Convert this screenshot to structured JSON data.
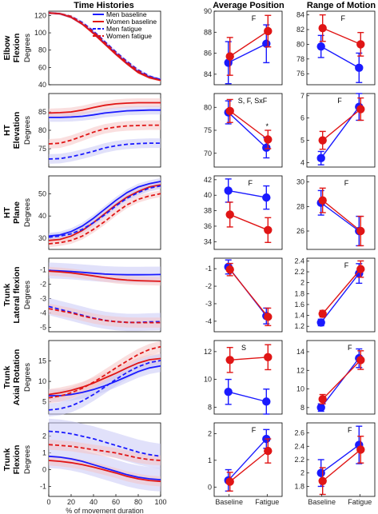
{
  "column_titles": [
    "Time Histories",
    "Average Position",
    "Range of Motion"
  ],
  "row_titles": [
    [
      "Elbow",
      "Flexion"
    ],
    [
      "HT",
      "Elevation"
    ],
    [
      "HT",
      "Plane"
    ],
    [
      "Trunk",
      "Lateral flexion"
    ],
    [
      "Trunk",
      "Axial Rotation"
    ],
    [
      "Trunk",
      "Flexion"
    ]
  ],
  "ylabel": "Degrees",
  "xlabel": "% of movement duration",
  "legend": [
    "Men baseline",
    "Women baseline",
    "Men fatigue",
    "Women fatigue"
  ],
  "colors": {
    "men": "#1a1aff",
    "women": "#e01515",
    "men_band": "#c8c8f5",
    "women_band": "#f5c4c4"
  },
  "chart_data": [
    {
      "type": "line",
      "row": "Elbow Flexion",
      "panel": "Time Histories",
      "x": [
        0,
        10,
        20,
        30,
        40,
        50,
        60,
        70,
        80,
        90,
        100
      ],
      "xlim": [
        0,
        100
      ],
      "ylim": [
        40,
        125
      ],
      "yticks": [
        40,
        60,
        80,
        100,
        120
      ],
      "series": [
        {
          "name": "Men baseline",
          "values": [
            123,
            122,
            118,
            110,
            100,
            88,
            76,
            65,
            55,
            49,
            46
          ],
          "band": 1.5
        },
        {
          "name": "Women baseline",
          "values": [
            123,
            122,
            118,
            110,
            99,
            87,
            75,
            64,
            54,
            48,
            45
          ],
          "band": 1.5
        },
        {
          "name": "Men fatigue",
          "values": [
            123,
            122,
            119,
            112,
            102,
            90,
            78,
            67,
            57,
            50,
            46
          ],
          "band": 1.5
        },
        {
          "name": "Women fatigue",
          "values": [
            123,
            122,
            119,
            111,
            101,
            89,
            77,
            66,
            56,
            49,
            45
          ],
          "band": 1.5
        }
      ]
    },
    {
      "type": "line",
      "row": "HT Elevation",
      "panel": "Time Histories",
      "x": [
        0,
        10,
        20,
        30,
        40,
        50,
        60,
        70,
        80,
        90,
        100
      ],
      "xlim": [
        0,
        100
      ],
      "ylim": [
        70,
        90
      ],
      "yticks": [
        75,
        80,
        85
      ],
      "series": [
        {
          "name": "Men baseline",
          "values": [
            83.5,
            83.5,
            83.6,
            83.8,
            84.2,
            84.7,
            85,
            85.3,
            85.4,
            85.5,
            85.5
          ],
          "band": 1.2
        },
        {
          "name": "Women baseline",
          "values": [
            84.7,
            84.8,
            85,
            85.5,
            86.2,
            86.8,
            87.2,
            87.4,
            87.5,
            87.5,
            87.5
          ],
          "band": 1.2
        },
        {
          "name": "Men fatigue",
          "values": [
            72.2,
            72.3,
            72.8,
            73.5,
            74.3,
            75.2,
            75.8,
            76.2,
            76.4,
            76.5,
            76.5
          ],
          "band": 1.3
        },
        {
          "name": "Women fatigue",
          "values": [
            76.3,
            76.5,
            77.3,
            78.4,
            79.5,
            80.4,
            80.9,
            81.2,
            81.3,
            81.4,
            81.4
          ],
          "band": 1.3
        }
      ]
    },
    {
      "type": "line",
      "row": "HT Plane",
      "panel": "Time Histories",
      "x": [
        0,
        10,
        20,
        30,
        40,
        50,
        60,
        70,
        80,
        90,
        100
      ],
      "xlim": [
        0,
        100
      ],
      "ylim": [
        25,
        58
      ],
      "yticks": [
        30,
        40,
        50
      ],
      "series": [
        {
          "name": "Men baseline",
          "values": [
            31,
            31.5,
            33,
            35.5,
            39,
            43,
            47,
            50.5,
            53,
            54.5,
            55.5
          ],
          "band": 1.5
        },
        {
          "name": "Women baseline",
          "values": [
            29,
            29.5,
            31,
            33.5,
            37,
            41,
            45,
            48.5,
            51,
            53,
            54
          ],
          "band": 1.5
        },
        {
          "name": "Men fatigue",
          "values": [
            30.5,
            31,
            32,
            34,
            37,
            40.5,
            44.5,
            48,
            50.5,
            52.5,
            53.5
          ],
          "band": 1.5
        },
        {
          "name": "Women fatigue",
          "values": [
            27.5,
            28,
            29,
            31,
            34,
            37.5,
            41.5,
            45,
            47.5,
            49,
            50
          ],
          "band": 1.5
        }
      ]
    },
    {
      "type": "line",
      "row": "Trunk Lateral flexion",
      "panel": "Time Histories",
      "x": [
        0,
        10,
        20,
        30,
        40,
        50,
        60,
        70,
        80,
        90,
        100
      ],
      "xlim": [
        0,
        100
      ],
      "ylim": [
        -5.3,
        -0.2
      ],
      "yticks": [
        -1,
        -2,
        -3,
        -4,
        -5
      ],
      "series": [
        {
          "name": "Men baseline",
          "values": [
            -1.05,
            -1.08,
            -1.12,
            -1.18,
            -1.24,
            -1.3,
            -1.33,
            -1.35,
            -1.35,
            -1.34,
            -1.33
          ],
          "band": 0.55
        },
        {
          "name": "Women baseline",
          "values": [
            -1.1,
            -1.15,
            -1.22,
            -1.32,
            -1.43,
            -1.55,
            -1.65,
            -1.72,
            -1.76,
            -1.78,
            -1.8
          ],
          "band": 0.3
        },
        {
          "name": "Men fatigue",
          "values": [
            -3.55,
            -3.75,
            -3.95,
            -4.15,
            -4.35,
            -4.5,
            -4.6,
            -4.65,
            -4.65,
            -4.62,
            -4.6
          ],
          "band": 0.6
        },
        {
          "name": "Women fatigue",
          "values": [
            -3.7,
            -3.85,
            -4.0,
            -4.2,
            -4.38,
            -4.52,
            -4.6,
            -4.65,
            -4.67,
            -4.67,
            -4.67
          ],
          "band": 0.35
        }
      ]
    },
    {
      "type": "line",
      "row": "Trunk Axial Rotation",
      "panel": "Time Histories",
      "x": [
        0,
        10,
        20,
        30,
        40,
        50,
        60,
        70,
        80,
        90,
        100
      ],
      "xlim": [
        0,
        100
      ],
      "ylim": [
        2,
        20
      ],
      "yticks": [
        5,
        10,
        15
      ],
      "series": [
        {
          "name": "Men baseline",
          "values": [
            6.5,
            6.5,
            6.8,
            7.3,
            8.0,
            8.9,
            10.0,
            11.2,
            12.4,
            13.3,
            13.8
          ],
          "band": 1.5
        },
        {
          "name": "Women baseline",
          "values": [
            6.8,
            7.2,
            7.8,
            8.6,
            9.6,
            10.8,
            12.0,
            13.3,
            14.5,
            15.3,
            15.6
          ],
          "band": 1.3
        },
        {
          "name": "Men fatigue",
          "values": [
            3.0,
            3.3,
            4.0,
            5.2,
            6.8,
            8.6,
            10.5,
            12.2,
            13.6,
            14.6,
            15.1
          ],
          "band": 1.6
        },
        {
          "name": "Women fatigue",
          "values": [
            6.0,
            6.4,
            7.2,
            8.3,
            9.8,
            11.5,
            13.3,
            15.0,
            16.6,
            17.8,
            18.5
          ],
          "band": 1.4
        }
      ]
    },
    {
      "type": "line",
      "row": "Trunk Flexion",
      "panel": "Time Histories",
      "x": [
        0,
        10,
        20,
        30,
        40,
        50,
        60,
        70,
        80,
        90,
        100
      ],
      "xlim": [
        0,
        100
      ],
      "ylim": [
        -1.6,
        2.8
      ],
      "yticks": [
        -1,
        0,
        1,
        2
      ],
      "series": [
        {
          "name": "Men baseline",
          "values": [
            0.8,
            0.75,
            0.65,
            0.5,
            0.3,
            0.1,
            -0.1,
            -0.3,
            -0.45,
            -0.55,
            -0.6
          ],
          "band": 0.7
        },
        {
          "name": "Women baseline",
          "values": [
            0.55,
            0.5,
            0.42,
            0.3,
            0.15,
            -0.02,
            -0.2,
            -0.4,
            -0.55,
            -0.65,
            -0.7
          ],
          "band": 0.3
        },
        {
          "name": "Men fatigue",
          "values": [
            2.3,
            2.25,
            2.15,
            2.0,
            1.85,
            1.65,
            1.45,
            1.25,
            1.05,
            0.9,
            0.8
          ],
          "band": 0.75
        },
        {
          "name": "Women fatigue",
          "values": [
            1.5,
            1.45,
            1.4,
            1.3,
            1.2,
            1.1,
            1.0,
            0.85,
            0.7,
            0.6,
            0.55
          ],
          "band": 0.3
        }
      ]
    },
    {
      "type": "scatter",
      "row": "Elbow Flexion",
      "panel": "Average Position",
      "categories": [
        "Baseline",
        "Fatigue"
      ],
      "ylim": [
        83,
        90
      ],
      "yticks": [
        84,
        86,
        88,
        90
      ],
      "annotation": "F",
      "annotation_x": 0.55,
      "star": false,
      "series": [
        {
          "name": "Men",
          "values": [
            85.1,
            86.9
          ],
          "err": [
            2.0,
            1.8
          ]
        },
        {
          "name": "Women",
          "values": [
            85.7,
            88.1
          ],
          "err": [
            1.8,
            1.5
          ]
        }
      ]
    },
    {
      "type": "scatter",
      "row": "HT Elevation",
      "panel": "Average Position",
      "categories": [
        "Baseline",
        "Fatigue"
      ],
      "ylim": [
        67,
        83
      ],
      "yticks": [
        70,
        75,
        80
      ],
      "annotation": "S, F, SxF",
      "annotation_x": 0.35,
      "star": true,
      "series": [
        {
          "name": "Men",
          "values": [
            78.9,
            71.2
          ],
          "err": [
            2.5,
            2.2
          ]
        },
        {
          "name": "Women",
          "values": [
            79.2,
            73.0
          ],
          "err": [
            2.5,
            2.0
          ]
        }
      ]
    },
    {
      "type": "scatter",
      "row": "HT Plane",
      "panel": "Average Position",
      "categories": [
        "Baseline",
        "Fatigue"
      ],
      "ylim": [
        33,
        42.5
      ],
      "yticks": [
        34,
        36,
        38,
        40,
        42
      ],
      "annotation": "F",
      "annotation_x": 0.5,
      "star": false,
      "series": [
        {
          "name": "Men",
          "values": [
            40.6,
            39.7
          ],
          "err": [
            1.5,
            1.5
          ]
        },
        {
          "name": "Women",
          "values": [
            37.5,
            35.5
          ],
          "err": [
            1.6,
            1.6
          ]
        }
      ]
    },
    {
      "type": "scatter",
      "row": "Trunk Lateral flexion",
      "panel": "Average Position",
      "categories": [
        "Baseline",
        "Fatigue"
      ],
      "ylim": [
        -4.6,
        -0.4
      ],
      "yticks": [
        -1,
        -2,
        -3,
        -4
      ],
      "annotation": "",
      "annotation_x": 0.5,
      "star": false,
      "series": [
        {
          "name": "Men",
          "values": [
            -0.9,
            -3.7
          ],
          "err": [
            0.4,
            0.45
          ]
        },
        {
          "name": "Women",
          "values": [
            -1.05,
            -3.75
          ],
          "err": [
            0.35,
            0.5
          ]
        }
      ]
    },
    {
      "type": "scatter",
      "row": "Trunk Axial Rotation",
      "panel": "Average Position",
      "categories": [
        "Baseline",
        "Fatigue"
      ],
      "ylim": [
        7.5,
        12.8
      ],
      "yticks": [
        8,
        10,
        12
      ],
      "annotation": "S",
      "annotation_x": 0.4,
      "star": false,
      "series": [
        {
          "name": "Men",
          "values": [
            9.1,
            8.4
          ],
          "err": [
            0.9,
            0.9
          ]
        },
        {
          "name": "Women",
          "values": [
            11.4,
            11.6
          ],
          "err": [
            0.9,
            0.9
          ]
        }
      ]
    },
    {
      "type": "scatter",
      "row": "Trunk Flexion",
      "panel": "Average Position",
      "categories": [
        "Baseline",
        "Fatigue"
      ],
      "ylim": [
        -0.35,
        2.4
      ],
      "yticks": [
        0,
        1,
        2
      ],
      "annotation": "F",
      "annotation_x": 0.55,
      "star": false,
      "series": [
        {
          "name": "Men",
          "values": [
            0.25,
            1.8
          ],
          "err": [
            0.4,
            0.35
          ]
        },
        {
          "name": "Women",
          "values": [
            0.2,
            1.35
          ],
          "err": [
            0.35,
            0.45
          ]
        }
      ]
    },
    {
      "type": "scatter",
      "row": "Elbow Flexion",
      "panel": "Range of Motion",
      "categories": [
        "Baseline",
        "Fatigue"
      ],
      "ylim": [
        74.5,
        84.5
      ],
      "yticks": [
        76,
        78,
        80,
        82,
        84
      ],
      "annotation": "F",
      "annotation_x": 0.5,
      "star": false,
      "series": [
        {
          "name": "Men",
          "values": [
            79.7,
            76.8
          ],
          "err": [
            1.5,
            2.0
          ]
        },
        {
          "name": "Women",
          "values": [
            82.2,
            80.0
          ],
          "err": [
            1.8,
            1.6
          ]
        }
      ]
    },
    {
      "type": "scatter",
      "row": "HT Elevation",
      "panel": "Range of Motion",
      "categories": [
        "Baseline",
        "Fatigue"
      ],
      "ylim": [
        3.8,
        7.1
      ],
      "yticks": [
        4,
        5,
        6,
        7
      ],
      "annotation": "F",
      "annotation_x": 0.45,
      "star": false,
      "series": [
        {
          "name": "Men",
          "values": [
            4.2,
            6.5
          ],
          "err": [
            0.3,
            0.6
          ]
        },
        {
          "name": "Women",
          "values": [
            5.0,
            6.4
          ],
          "err": [
            0.4,
            0.5
          ]
        }
      ]
    },
    {
      "type": "scatter",
      "row": "HT Plane",
      "panel": "Range of Motion",
      "categories": [
        "Baseline",
        "Fatigue"
      ],
      "ylim": [
        24.5,
        30.5
      ],
      "yticks": [
        26,
        28,
        30
      ],
      "annotation": "F",
      "annotation_x": 0.55,
      "star": false,
      "series": [
        {
          "name": "Men",
          "values": [
            28.3,
            26.0
          ],
          "err": [
            1.0,
            1.2
          ]
        },
        {
          "name": "Women",
          "values": [
            28.5,
            26.0
          ],
          "err": [
            1.0,
            1.2
          ]
        }
      ]
    },
    {
      "type": "scatter",
      "row": "Trunk Lateral flexion",
      "panel": "Range of Motion",
      "categories": [
        "Baseline",
        "Fatigue"
      ],
      "ylim": [
        1.1,
        2.45
      ],
      "yticks": [
        1.2,
        1.4,
        1.6,
        1.8,
        2.0,
        2.2,
        2.4
      ],
      "annotation": "F",
      "annotation_x": 0.55,
      "star": false,
      "series": [
        {
          "name": "Men",
          "values": [
            1.27,
            2.17
          ],
          "err": [
            0.06,
            0.18
          ]
        },
        {
          "name": "Women",
          "values": [
            1.43,
            2.25
          ],
          "err": [
            0.06,
            0.15
          ]
        }
      ]
    },
    {
      "type": "scatter",
      "row": "Trunk Axial Rotation",
      "panel": "Range of Motion",
      "categories": [
        "Baseline",
        "Fatigue"
      ],
      "ylim": [
        7.3,
        15.2
      ],
      "yticks": [
        8,
        10,
        12,
        14
      ],
      "annotation": "F",
      "annotation_x": 0.6,
      "star": false,
      "series": [
        {
          "name": "Men",
          "values": [
            8.0,
            13.3
          ],
          "err": [
            0.4,
            1.0
          ]
        },
        {
          "name": "Women",
          "values": [
            8.9,
            13.1
          ],
          "err": [
            0.5,
            1.0
          ]
        }
      ]
    },
    {
      "type": "scatter",
      "row": "Trunk Flexion",
      "panel": "Range of Motion",
      "categories": [
        "Baseline",
        "Fatigue"
      ],
      "ylim": [
        1.65,
        2.75
      ],
      "yticks": [
        1.8,
        2.0,
        2.2,
        2.4,
        2.6
      ],
      "annotation": "F",
      "annotation_x": 0.6,
      "star": false,
      "series": [
        {
          "name": "Men",
          "values": [
            2.0,
            2.42
          ],
          "err": [
            0.2,
            0.28
          ]
        },
        {
          "name": "Women",
          "values": [
            1.88,
            2.35
          ],
          "err": [
            0.2,
            0.2
          ]
        }
      ]
    }
  ]
}
